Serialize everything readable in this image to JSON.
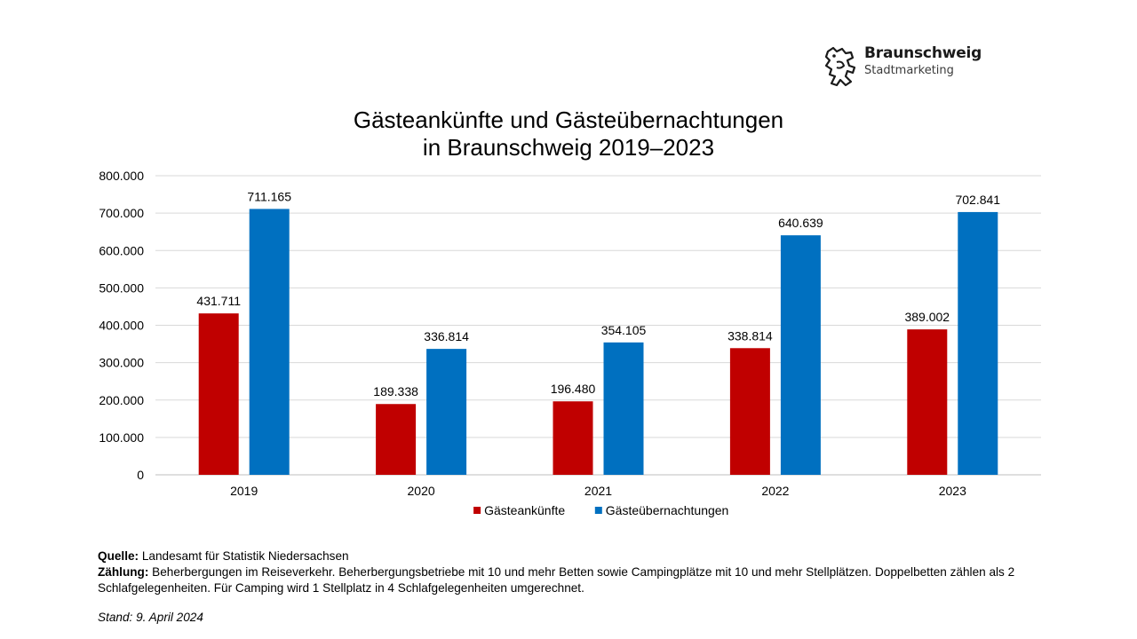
{
  "logo": {
    "name": "Braunschweig",
    "sub": "Stadtmarketing"
  },
  "chart_data": {
    "type": "bar",
    "title_line1": "Gästeankünfte und Gästeübernachtungen",
    "title_line2": "in Braunschweig 2019–2023",
    "categories": [
      "2019",
      "2020",
      "2021",
      "2022",
      "2023"
    ],
    "series": [
      {
        "name": "Gästeankünfte",
        "color": "#C00000",
        "values": [
          431711,
          189338,
          196480,
          338814,
          389002
        ],
        "labels": [
          "431.711",
          "189.338",
          "196.480",
          "338.814",
          "389.002"
        ]
      },
      {
        "name": "Gästeübernachtungen",
        "color": "#0070C0",
        "values": [
          711165,
          336814,
          354105,
          640639,
          702841
        ],
        "labels": [
          "711.165",
          "336.814",
          "354.105",
          "640.639",
          "702.841"
        ]
      }
    ],
    "ylim": [
      0,
      800000
    ],
    "yticks": [
      0,
      100000,
      200000,
      300000,
      400000,
      500000,
      600000,
      700000,
      800000
    ],
    "ytick_labels": [
      "0",
      "100.000",
      "200.000",
      "300.000",
      "400.000",
      "500.000",
      "600.000",
      "700.000",
      "800.000"
    ],
    "grid": true,
    "legend": "bottom-center"
  },
  "notes": {
    "source_label": "Quelle:",
    "source_text": " Landesamt für Statistik Niedersachsen",
    "count_label": "Zählung:",
    "count_text": " Beherbergungen im Reiseverkehr. Beherbergungsbetriebe mit 10 und mehr Betten sowie Campingplätze mit 10 und mehr Stellplätzen. Doppelbetten zählen als 2 Schlafgelegenheiten. Für Camping wird 1 Stellplatz in 4 Schlafgelegenheiten umgerechnet.",
    "stand": "Stand: 9. April 2024"
  }
}
